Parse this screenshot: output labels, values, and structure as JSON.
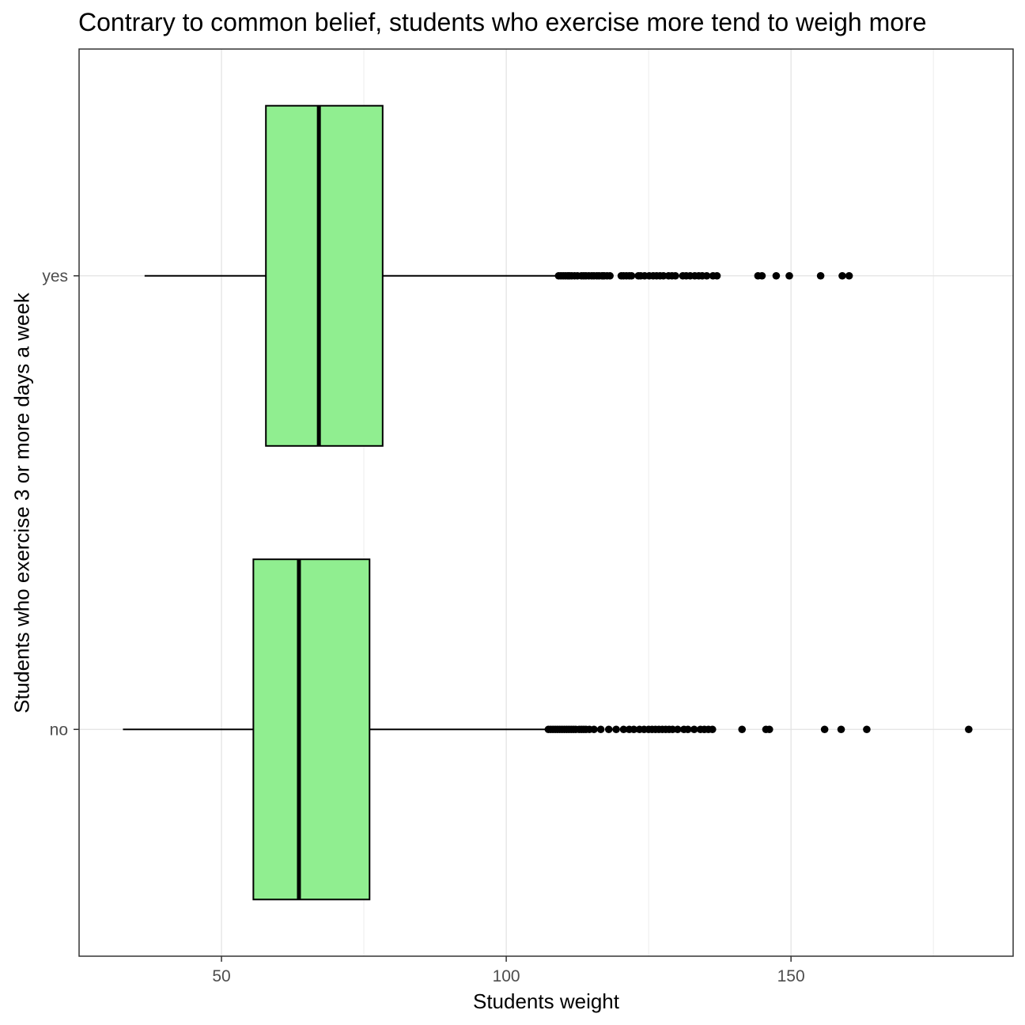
{
  "chart_data": {
    "type": "boxplot",
    "orientation": "horizontal",
    "title": "Contrary to common belief, students who exercise more tend to weigh more",
    "xlabel": "Students weight",
    "ylabel": "Students who exercise 3 or more days a week",
    "xlim": [
      25,
      189
    ],
    "x_ticks": [
      50,
      100,
      150
    ],
    "x_minor_ticks": [
      25,
      75,
      125,
      175
    ],
    "categories": [
      "no",
      "yes"
    ],
    "grid": true,
    "legend": "none",
    "box_fill": "#90EE90",
    "series": [
      {
        "category": "yes",
        "whisker_low": 36.5,
        "q1": 57.8,
        "median": 67.1,
        "q3": 78.3,
        "whisker_high": 108.9,
        "outliers": [
          109.2,
          109.6,
          110.0,
          110.4,
          110.8,
          111.1,
          111.5,
          112.0,
          112.5,
          113.2,
          113.6,
          114.0,
          114.5,
          115.0,
          115.4,
          115.9,
          116.3,
          116.8,
          117.2,
          117.7,
          118.2,
          120.2,
          120.6,
          121.1,
          121.6,
          122.0,
          123.2,
          123.6,
          124.3,
          125.1,
          125.8,
          126.4,
          127.0,
          127.6,
          128.5,
          129.1,
          129.7,
          131.0,
          131.6,
          132.3,
          133.1,
          133.8,
          134.4,
          135.2,
          136.3,
          137.0,
          144.2,
          144.9,
          147.4,
          149.7,
          155.2,
          159.0,
          160.2
        ]
      },
      {
        "category": "no",
        "whisker_low": 32.7,
        "q1": 55.6,
        "median": 63.6,
        "q3": 76.0,
        "whisker_high": 107.0,
        "outliers": [
          107.4,
          107.8,
          108.2,
          108.6,
          109.0,
          109.4,
          109.8,
          110.2,
          110.6,
          111.0,
          111.4,
          111.8,
          112.2,
          112.8,
          113.2,
          113.6,
          114.0,
          114.6,
          115.4,
          116.6,
          118.0,
          119.3,
          120.6,
          121.6,
          122.4,
          123.4,
          124.2,
          125.0,
          125.6,
          126.2,
          126.8,
          127.4,
          128.0,
          128.6,
          129.2,
          130.1,
          131.2,
          131.9,
          133.0,
          134.1,
          134.8,
          135.5,
          136.2,
          141.4,
          145.6,
          146.2,
          155.9,
          158.8,
          163.3,
          181.2
        ]
      }
    ]
  }
}
